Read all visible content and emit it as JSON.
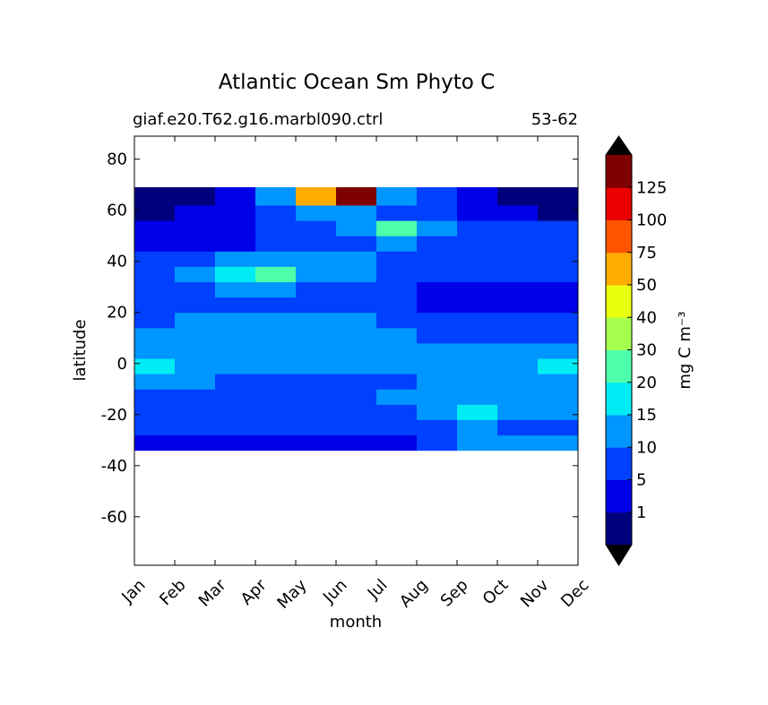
{
  "chart_data": {
    "type": "contour",
    "title": "Atlantic Ocean Sm Phyto C",
    "subtitle_left": "giaf.e20.T62.g16.marbl090.ctrl",
    "subtitle_right": "53-62",
    "x_label": "month",
    "y_label": "latitude",
    "categories": [
      "Jan",
      "Feb",
      "Mar",
      "Apr",
      "May",
      "Jun",
      "Jul",
      "Aug",
      "Sep",
      "Oct",
      "Nov",
      "Dec"
    ],
    "ylim": [
      -79,
      89
    ],
    "yticks": [
      -60,
      -40,
      -20,
      0,
      20,
      40,
      60,
      80
    ],
    "lat_edges": [
      -34,
      -28,
      -22,
      -16,
      -10,
      -4,
      2,
      8,
      14,
      20,
      26,
      32,
      38,
      44,
      50,
      56,
      62,
      69
    ],
    "z": [
      [
        3,
        3,
        3,
        3,
        4,
        3,
        3,
        8,
        11,
        12,
        11
      ],
      [
        7,
        7,
        7,
        7,
        7,
        7,
        7,
        8,
        12,
        8,
        6
      ],
      [
        7,
        7,
        7,
        7,
        7,
        7,
        7,
        12,
        17,
        12,
        11
      ],
      [
        7,
        7,
        7,
        7,
        7,
        7,
        12,
        12,
        12,
        12,
        12
      ],
      [
        12,
        12,
        8,
        7,
        7,
        7,
        7,
        12,
        12,
        12,
        12
      ],
      [
        16,
        12,
        12,
        12,
        12,
        12,
        12,
        12,
        12,
        12,
        16
      ],
      [
        12,
        12,
        12,
        12,
        12,
        12,
        12,
        12,
        12,
        12,
        12
      ],
      [
        12,
        12,
        14,
        12,
        12,
        12,
        12,
        8,
        8,
        8,
        8
      ],
      [
        8,
        12,
        12,
        12,
        12,
        12,
        8,
        7,
        7,
        7,
        7
      ],
      [
        7,
        7,
        7,
        7,
        7,
        7,
        7,
        3,
        3,
        3,
        3
      ],
      [
        7,
        8,
        12,
        12,
        7,
        7,
        7,
        3,
        3,
        3,
        3
      ],
      [
        8,
        12,
        18,
        25,
        14,
        12,
        8,
        7,
        7,
        7,
        7
      ],
      [
        7,
        7,
        12,
        12,
        12,
        12,
        8,
        7,
        8,
        7,
        7
      ],
      [
        3,
        3,
        3,
        7,
        7,
        8,
        12,
        7,
        7,
        7,
        7
      ],
      [
        3,
        3,
        3,
        7,
        8,
        12,
        22,
        12,
        7,
        7,
        7
      ],
      [
        0.5,
        3,
        3,
        7,
        12,
        12,
        8,
        7,
        3,
        3,
        0.5
      ],
      [
        0.5,
        0.5,
        3,
        12,
        60,
        130,
        14,
        7,
        3,
        0.5,
        0.5
      ]
    ],
    "colorbar_label": "mg C m⁻³",
    "levels": [
      1,
      5,
      10,
      15,
      20,
      30,
      40,
      50,
      75,
      100,
      125
    ],
    "colors": [
      "#00007f",
      "#0000e8",
      "#0040ff",
      "#0096ff",
      "#00ecf4",
      "#4dffaa",
      "#a6ff4d",
      "#eaff0d",
      "#ffac00",
      "#ff5500",
      "#ea0000",
      "#7f0000"
    ],
    "extend_color": "#000000"
  }
}
